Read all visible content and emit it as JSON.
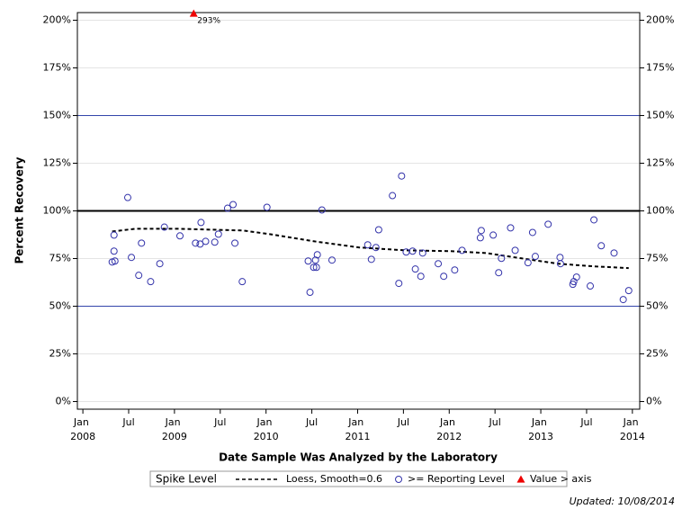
{
  "chart_data": {
    "type": "scatter",
    "y_label": "Percent Recovery",
    "x_label": "Date Sample Was Analyzed by the Laboratory",
    "legend_title": "Spike Level",
    "footer": "Updated: 10/08/2014",
    "xlim": [
      2007.94,
      2014.08
    ],
    "xticks": [
      {
        "value": 2008,
        "label": "Jan 2008"
      },
      {
        "value": 2008.5,
        "label": "Jul"
      },
      {
        "value": 2009,
        "label": "Jan 2009"
      },
      {
        "value": 2009.5,
        "label": "Jul"
      },
      {
        "value": 2010,
        "label": "Jan 2010"
      },
      {
        "value": 2010.5,
        "label": "Jul"
      },
      {
        "value": 2011,
        "label": "Jan 2011"
      },
      {
        "value": 2011.5,
        "label": "Jul"
      },
      {
        "value": 2012,
        "label": "Jan 2012"
      },
      {
        "value": 2012.5,
        "label": "Jul"
      },
      {
        "value": 2013,
        "label": "Jan 2013"
      },
      {
        "value": 2013.5,
        "label": "Jul"
      },
      {
        "value": 2014,
        "label": "Jan 2014"
      }
    ],
    "ylim": [
      -4,
      204
    ],
    "yticks": [
      {
        "value": 0,
        "label": "0%"
      },
      {
        "value": 25,
        "label": "25%"
      },
      {
        "value": 50,
        "label": "50%"
      },
      {
        "value": 75,
        "label": "75%"
      },
      {
        "value": 100,
        "label": "100%"
      },
      {
        "value": 125,
        "label": "125%"
      },
      {
        "value": 150,
        "label": "150%"
      },
      {
        "value": 175,
        "label": "175%"
      },
      {
        "value": 200,
        "label": "200%"
      }
    ],
    "grid": true,
    "reference_lines": [
      {
        "value": 50,
        "color": "#3344aa",
        "width": 1
      },
      {
        "value": 100,
        "color": "#000000",
        "width": 2
      },
      {
        "value": 150,
        "color": "#3344aa",
        "width": 1
      }
    ],
    "series": [
      {
        "name": "Loess, Smooth=0.6",
        "type": "line",
        "color": "#000000",
        "dashed": true,
        "x": [
          2008.32,
          2008.57,
          2009.06,
          2009.75,
          2010.04,
          2010.53,
          2011.02,
          2011.52,
          2012.01,
          2012.4,
          2012.79,
          2013.19,
          2013.58,
          2013.96
        ],
        "values": [
          89.2,
          90.6,
          90.6,
          89.7,
          87.8,
          84.0,
          80.8,
          79.3,
          78.9,
          77.9,
          75.1,
          72.3,
          70.9,
          70.0
        ]
      },
      {
        "name": ">= Reporting Level",
        "type": "scatter",
        "color": "#3333aa",
        "marker": "circle",
        "x": [
          2008.32,
          2008.34,
          2008.34,
          2008.35,
          2008.49,
          2008.53,
          2008.61,
          2008.64,
          2008.74,
          2008.84,
          2008.89,
          2009.06,
          2009.23,
          2009.28,
          2009.29,
          2009.34,
          2009.44,
          2009.48,
          2009.58,
          2009.64,
          2009.66,
          2009.74,
          2010.01,
          2010.46,
          2010.48,
          2010.52,
          2010.54,
          2010.55,
          2010.56,
          2010.61,
          2010.72,
          2011.11,
          2011.15,
          2011.2,
          2011.23,
          2011.38,
          2011.45,
          2011.48,
          2011.53,
          2011.6,
          2011.63,
          2011.69,
          2011.71,
          2011.88,
          2011.94,
          2012.06,
          2012.14,
          2012.34,
          2012.35,
          2012.48,
          2012.54,
          2012.57,
          2012.67,
          2012.72,
          2012.86,
          2012.91,
          2012.94,
          2013.08,
          2013.21,
          2013.215,
          2013.35,
          2013.36,
          2013.39,
          2013.54,
          2013.58,
          2013.66,
          2013.8,
          2013.9,
          2013.96
        ],
        "values": [
          73.2,
          78.9,
          87.3,
          73.7,
          107.0,
          75.6,
          66.2,
          83.1,
          62.9,
          72.3,
          91.5,
          86.9,
          83.1,
          82.6,
          93.9,
          84.0,
          83.6,
          87.8,
          101.4,
          103.3,
          83.1,
          62.9,
          101.9,
          73.7,
          57.3,
          70.4,
          74.2,
          70.4,
          77.0,
          100.5,
          74.2,
          82.2,
          74.6,
          80.8,
          90.1,
          108.0,
          62.0,
          118.3,
          78.4,
          78.9,
          69.5,
          65.7,
          77.9,
          72.3,
          65.7,
          69.0,
          79.3,
          85.9,
          89.7,
          87.3,
          67.6,
          75.1,
          91.1,
          79.3,
          72.8,
          88.7,
          76.1,
          93.0,
          75.6,
          72.3,
          61.5,
          62.9,
          65.3,
          60.6,
          95.3,
          81.7,
          77.9,
          53.5,
          58.2
        ]
      },
      {
        "name": "Value > axis",
        "type": "offaxis",
        "color": "#ee0000",
        "marker": "triangle",
        "x": [
          2009.21
        ],
        "values": [
          293
        ],
        "value_labels": [
          "293%"
        ]
      }
    ]
  }
}
